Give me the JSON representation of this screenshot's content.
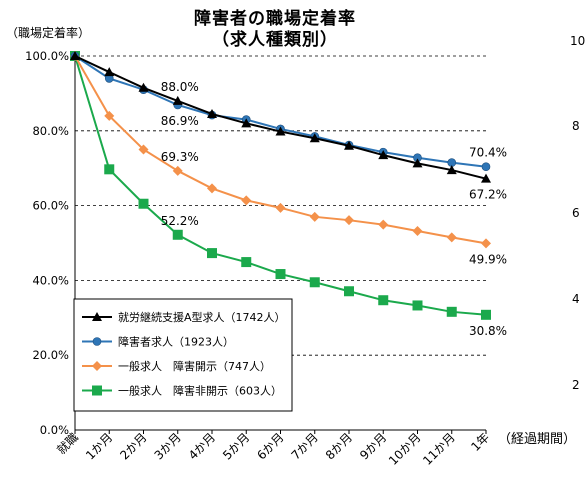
{
  "title_line1": "障害者の職場定着率",
  "title_line2": "（求人種類別）",
  "ylabel": "（職場定着率）",
  "x_unit": "（経過期間）",
  "right_axis_fragments": [
    "10",
    "8",
    "6",
    "4",
    "2"
  ],
  "colors": {
    "series_a": "#000000",
    "series_b": "#2E75B6",
    "series_c": "#F4914A",
    "series_d": "#1BA94C",
    "grid": "#000000"
  },
  "chart_data": {
    "type": "line",
    "title": "障害者の職場定着率（求人種類別）",
    "ylabel": "（職場定着率）",
    "xlabel": "（経過期間）",
    "ylim": [
      0,
      100
    ],
    "yticks": [
      "0.0%",
      "20.0%",
      "40.0%",
      "60.0%",
      "80.0%",
      "100.0%"
    ],
    "grid": "horizontal dashed",
    "legend_position": "bottom-left",
    "categories": [
      "就職",
      "1か月",
      "2か月",
      "3か月",
      "4か月",
      "5か月",
      "6か月",
      "7か月",
      "8か月",
      "9か月",
      "10か月",
      "11か月",
      "1年"
    ],
    "series": [
      {
        "name": "就労継続支援A型求人（1742人）",
        "marker": "triangle",
        "color": "#000000",
        "values": [
          100,
          95.7,
          91.5,
          88.0,
          84.5,
          82.0,
          79.8,
          78.0,
          76.0,
          73.5,
          71.3,
          69.5,
          67.2
        ]
      },
      {
        "name": "障害者求人（1923人）",
        "marker": "circle",
        "color": "#2E75B6",
        "values": [
          100,
          94.0,
          91.0,
          86.9,
          84.2,
          83.0,
          80.5,
          78.5,
          76.2,
          74.3,
          72.8,
          71.5,
          70.4
        ]
      },
      {
        "name": "一般求人　障害開示（747人）",
        "marker": "diamond",
        "color": "#F4914A",
        "values": [
          100,
          84.0,
          75.0,
          69.3,
          64.6,
          61.4,
          59.4,
          57.0,
          56.1,
          54.9,
          53.2,
          51.5,
          49.9
        ]
      },
      {
        "name": "一般求人　障害非開示（603人）",
        "marker": "square",
        "color": "#1BA94C",
        "values": [
          100,
          69.7,
          60.5,
          52.2,
          47.3,
          44.9,
          41.7,
          39.5,
          37.1,
          34.7,
          33.3,
          31.6,
          30.8
        ]
      }
    ],
    "annotations": [
      {
        "text": "88.0%",
        "series": 0,
        "index": 3,
        "pos": "above"
      },
      {
        "text": "86.9%",
        "series": 1,
        "index": 3,
        "pos": "below"
      },
      {
        "text": "69.3%",
        "series": 2,
        "index": 3,
        "pos": "above"
      },
      {
        "text": "52.2%",
        "series": 3,
        "index": 3,
        "pos": "above"
      },
      {
        "text": "70.4%",
        "series": 1,
        "index": 12,
        "pos": "above"
      },
      {
        "text": "67.2%",
        "series": 0,
        "index": 12,
        "pos": "below"
      },
      {
        "text": "49.9%",
        "series": 2,
        "index": 12,
        "pos": "below"
      },
      {
        "text": "30.8%",
        "series": 3,
        "index": 12,
        "pos": "below"
      }
    ]
  }
}
